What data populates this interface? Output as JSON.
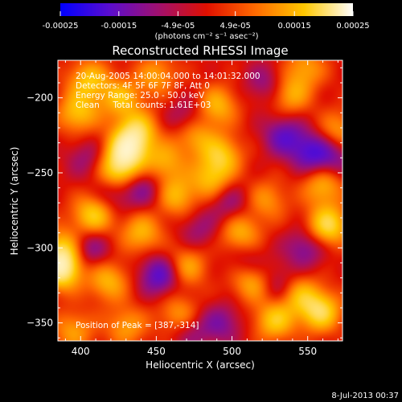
{
  "colorbar": {
    "ticks": [
      "-0.00025",
      "-0.00015",
      "-4.9e-05",
      "4.9e-05",
      "0.00015",
      "0.00025"
    ],
    "tick_values": [
      -0.00025,
      -0.00015,
      -4.9e-05,
      4.9e-05,
      0.00015,
      0.00025
    ],
    "range": [
      -0.00025,
      0.00025
    ],
    "units_label": "(photons cm⁻² s⁻¹ asec⁻²)",
    "colors": [
      "#0000ff",
      "#5a0dcf",
      "#a01070",
      "#e01000",
      "#ff6a00",
      "#ffc800",
      "#ffffff"
    ]
  },
  "chart_data": {
    "type": "heatmap",
    "title": "Reconstructed RHESSI Image",
    "xlabel": "Heliocentric X (arcsec)",
    "ylabel": "Heliocentric Y (arcsec)",
    "xlim": [
      385,
      573
    ],
    "ylim": [
      -362,
      -175
    ],
    "x_ticks": [
      400,
      450,
      500,
      550
    ],
    "y_ticks": [
      -200,
      -250,
      -300,
      -350
    ],
    "annotations": [
      "20-Aug-2005 14:00:04.000 to 14:01:32.000",
      "Detectors: 4F 5F 6F 7F 8F, Att 0",
      "Energy Range: 25.0 - 50.0 keV",
      "Clean     Total counts: 1.61E+03"
    ],
    "peak_label": "Position of Peak = [387,-314]",
    "peak": [
      387,
      -314
    ],
    "blobs": [
      {
        "x": 430,
        "y": -235,
        "v": 0.92
      },
      {
        "x": 424,
        "y": -250,
        "v": 0.75
      },
      {
        "x": 437,
        "y": -222,
        "v": 0.7
      },
      {
        "x": 387,
        "y": -314,
        "v": 1.0
      },
      {
        "x": 388,
        "y": -300,
        "v": 0.6
      },
      {
        "x": 408,
        "y": -278,
        "v": 0.7
      },
      {
        "x": 398,
        "y": -210,
        "v": 0.6
      },
      {
        "x": 405,
        "y": -188,
        "v": 0.6
      },
      {
        "x": 426,
        "y": -200,
        "v": 0.55
      },
      {
        "x": 463,
        "y": -265,
        "v": 0.55
      },
      {
        "x": 455,
        "y": -243,
        "v": 0.5
      },
      {
        "x": 475,
        "y": -225,
        "v": 0.5
      },
      {
        "x": 490,
        "y": -205,
        "v": 0.55
      },
      {
        "x": 493,
        "y": -238,
        "v": 0.6
      },
      {
        "x": 486,
        "y": -254,
        "v": 0.55
      },
      {
        "x": 505,
        "y": -290,
        "v": 0.55
      },
      {
        "x": 513,
        "y": -322,
        "v": 0.6
      },
      {
        "x": 528,
        "y": -348,
        "v": 0.65
      },
      {
        "x": 543,
        "y": -330,
        "v": 0.55
      },
      {
        "x": 558,
        "y": -342,
        "v": 0.8
      },
      {
        "x": 563,
        "y": -285,
        "v": 0.8
      },
      {
        "x": 560,
        "y": -258,
        "v": 0.55
      },
      {
        "x": 538,
        "y": -198,
        "v": 0.5
      },
      {
        "x": 548,
        "y": -180,
        "v": 0.45
      },
      {
        "x": 570,
        "y": -222,
        "v": 0.45
      },
      {
        "x": 470,
        "y": -312,
        "v": 0.5
      },
      {
        "x": 440,
        "y": -290,
        "v": 0.55
      },
      {
        "x": 418,
        "y": -322,
        "v": 0.55
      },
      {
        "x": 465,
        "y": -345,
        "v": 0.5
      },
      {
        "x": 430,
        "y": -352,
        "v": 0.45
      },
      {
        "x": 450,
        "y": -185,
        "v": 0.45
      },
      {
        "x": 523,
        "y": -268,
        "v": 0.4
      },
      {
        "x": 395,
        "y": -355,
        "v": 0.45
      },
      {
        "x": 452,
        "y": -318,
        "v": -0.65
      },
      {
        "x": 405,
        "y": -300,
        "v": -0.45
      },
      {
        "x": 422,
        "y": -262,
        "v": -0.4
      },
      {
        "x": 442,
        "y": -260,
        "v": -0.4
      },
      {
        "x": 470,
        "y": -213,
        "v": -0.35
      },
      {
        "x": 498,
        "y": -270,
        "v": -0.35
      },
      {
        "x": 534,
        "y": -225,
        "v": -0.55
      },
      {
        "x": 552,
        "y": -236,
        "v": -0.6
      },
      {
        "x": 548,
        "y": -300,
        "v": -0.45
      },
      {
        "x": 531,
        "y": -325,
        "v": -0.4
      },
      {
        "x": 493,
        "y": -350,
        "v": -0.4
      },
      {
        "x": 472,
        "y": -355,
        "v": -0.35
      },
      {
        "x": 510,
        "y": -310,
        "v": -0.3
      },
      {
        "x": 567,
        "y": -240,
        "v": -0.4
      },
      {
        "x": 404,
        "y": -240,
        "v": -0.3
      },
      {
        "x": 522,
        "y": -190,
        "v": -0.35
      },
      {
        "x": 478,
        "y": -288,
        "v": -0.3
      }
    ]
  },
  "footer": {
    "date": "8-Jul-2013 00:37"
  }
}
